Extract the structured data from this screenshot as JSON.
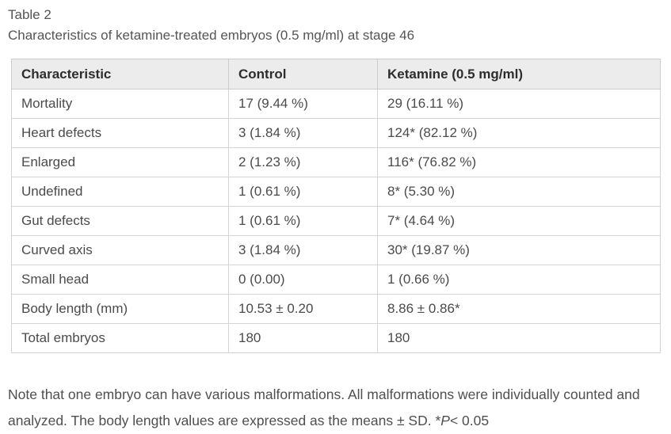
{
  "caption": {
    "label": "Table 2",
    "title": "Characteristics of ketamine-treated embryos (0.5 mg/ml) at stage 46"
  },
  "table": {
    "columns": [
      "Characteristic",
      "Control",
      "Ketamine (0.5 mg/ml)"
    ],
    "rows": [
      {
        "characteristic": "Mortality",
        "control": "17 (9.44 %)",
        "ketamine": "29 (16.11 %)",
        "indent": false
      },
      {
        "characteristic": "Heart defects",
        "control": "3 (1.84 %)",
        "ketamine": "124* (82.12 %)",
        "indent": false
      },
      {
        "characteristic": "Enlarged",
        "control": "2 (1.23 %)",
        "ketamine": "116* (76.82 %)",
        "indent": true
      },
      {
        "characteristic": "Undefined",
        "control": "1 (0.61 %)",
        "ketamine": "8* (5.30 %)",
        "indent": true
      },
      {
        "characteristic": "Gut defects",
        "control": "1 (0.61 %)",
        "ketamine": "7* (4.64 %)",
        "indent": false
      },
      {
        "characteristic": "Curved axis",
        "control": "3 (1.84 %)",
        "ketamine": "30* (19.87 %)",
        "indent": false
      },
      {
        "characteristic": "Small head",
        "control": "0 (0.00)",
        "ketamine": "1 (0.66 %)",
        "indent": false
      },
      {
        "characteristic": "Body length (mm)",
        "control": "10.53 ± 0.20",
        "ketamine": "8.86 ± 0.86*",
        "indent": false
      },
      {
        "characteristic": "Total embryos",
        "control": "180",
        "ketamine": "180",
        "indent": false
      }
    ]
  },
  "note": {
    "prefix": "Note that one embryo can have various malformations. All malformations were individually counted and analyzed. The body length values are expressed as the means ± SD. *",
    "p_italic": "P",
    "suffix": "< 0.05"
  },
  "colors": {
    "header_background": "#ececec",
    "outer_border": "#c6c6c6",
    "inner_border": "#d4d4d4",
    "header_text": "#2d2d2d",
    "body_text": "#4b4b4b",
    "caption_text": "#555555",
    "page_background": "#ffffff"
  }
}
